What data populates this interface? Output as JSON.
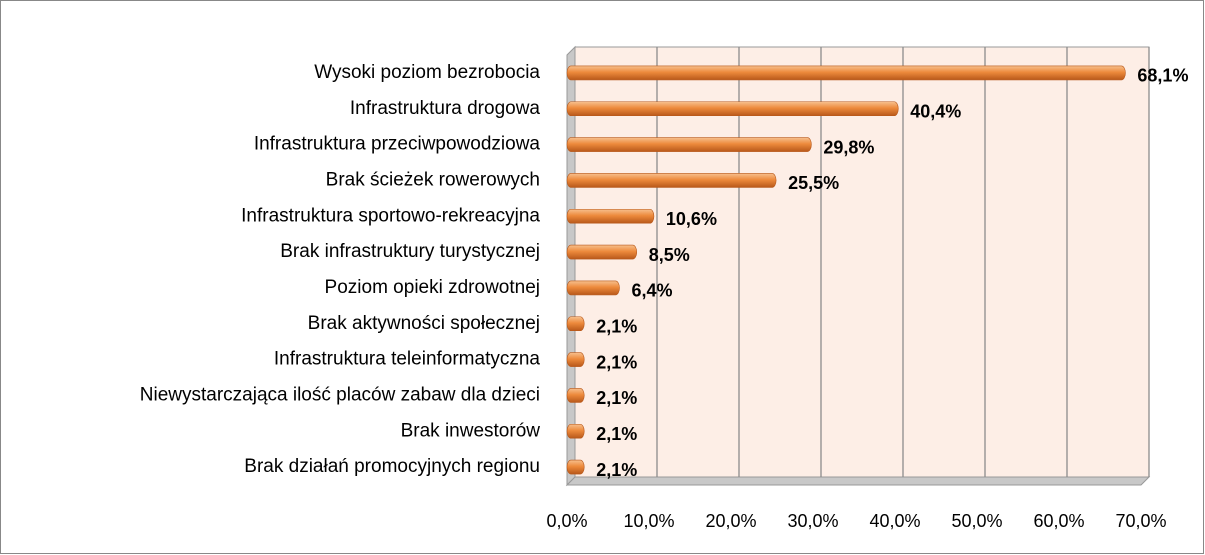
{
  "chart_data": {
    "type": "hbar",
    "categories": [
      "Wysoki poziom bezrobocia",
      "Infrastruktura drogowa",
      "Infrastruktura przeciwpowodziowa",
      "Brak ścieżek rowerowych",
      "Infrastruktura sportowo-rekreacyjna",
      "Brak infrastruktury turystycznej",
      "Poziom opieki zdrowotnej",
      "Brak aktywności społecznej",
      "Infrastruktura teleinformatyczna",
      "Niewystarczająca ilość placów zabaw dla dzieci",
      "Brak inwestorów",
      "Brak działań promocyjnych regionu"
    ],
    "values": [
      68.1,
      40.4,
      29.8,
      25.5,
      10.6,
      8.5,
      6.4,
      2.1,
      2.1,
      2.1,
      2.1,
      2.1
    ],
    "value_labels": [
      "68,1%",
      "40,4%",
      "29,8%",
      "25,5%",
      "10,6%",
      "8,5%",
      "6,4%",
      "2,1%",
      "2,1%",
      "2,1%",
      "2,1%",
      "2,1%"
    ],
    "color": "#ed8a3c",
    "xlim": [
      0,
      70
    ],
    "xticks": [
      {
        "value": 0,
        "label": "0,0%"
      },
      {
        "value": 10,
        "label": "10,0%"
      },
      {
        "value": 20,
        "label": "20,0%"
      },
      {
        "value": 30,
        "label": "30,0%"
      },
      {
        "value": 40,
        "label": "40,0%"
      },
      {
        "value": 50,
        "label": "50,0%"
      },
      {
        "value": 60,
        "label": "60,0%"
      },
      {
        "value": 70,
        "label": "70,0%"
      }
    ],
    "grid": true
  }
}
